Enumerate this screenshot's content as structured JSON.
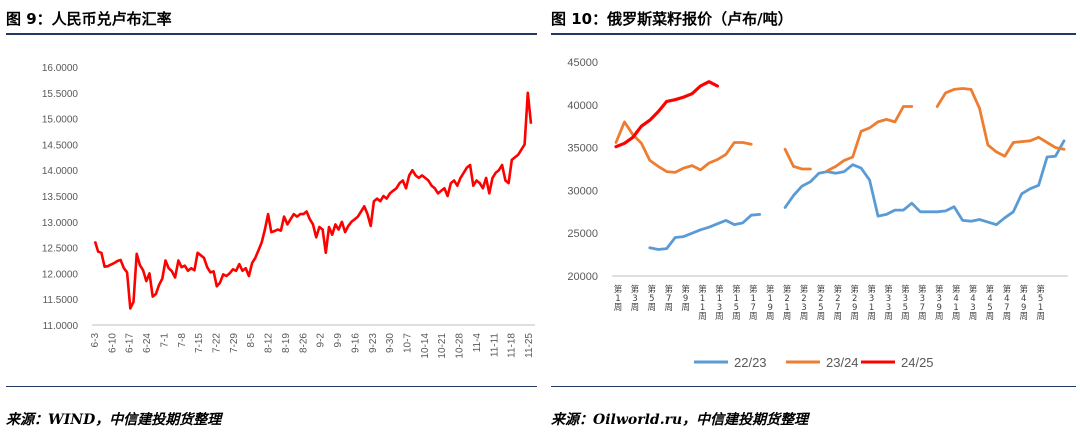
{
  "left": {
    "title": "图 9：人民币兑卢布汇率",
    "source": "来源：WIND，中信建投期货整理"
  },
  "right": {
    "title": "图 10：俄罗斯菜籽报价（卢布/吨）",
    "source": "来源：Oilworld.ru，中信建投期货整理"
  },
  "chart_data": [
    {
      "type": "line",
      "title": "图 9：人民币兑卢布汇率",
      "ylim": [
        11,
        16
      ],
      "yticks": [
        "11.0000",
        "11.5000",
        "12.0000",
        "12.5000",
        "13.0000",
        "13.5000",
        "14.0000",
        "14.5000",
        "15.0000",
        "15.5000",
        "16.0000"
      ],
      "xticks": [
        "6-3",
        "6-10",
        "6-17",
        "6-24",
        "7-1",
        "7-8",
        "7-15",
        "7-22",
        "7-29",
        "8-5",
        "8-12",
        "8-19",
        "8-26",
        "9-2",
        "9-9",
        "9-16",
        "9-23",
        "9-30",
        "10-7",
        "10-14",
        "10-21",
        "10-28",
        "11-4",
        "11-11",
        "11-18",
        "11-25"
      ],
      "color": "#ff0000",
      "series": [
        {
          "values": [
            12.62,
            12.42,
            12.4,
            12.13,
            12.14,
            12.17,
            12.2,
            12.24,
            12.26,
            12.1,
            12.02,
            11.32,
            11.45,
            12.38,
            12.16,
            12.06,
            11.85,
            12.0,
            11.55,
            11.6,
            11.78,
            11.9,
            12.25,
            12.1,
            12.04,
            11.92,
            12.25,
            12.12,
            12.15,
            12.05,
            12.1,
            12.06,
            12.4,
            12.35,
            12.3,
            12.12,
            12.02,
            12.04,
            11.75,
            11.82,
            11.98,
            11.95,
            12.0,
            12.08,
            12.05,
            12.18,
            12.05,
            12.1,
            11.95,
            12.2,
            12.3,
            12.45,
            12.6,
            12.85,
            13.15,
            12.8,
            12.82,
            12.85,
            12.83,
            13.1,
            12.95,
            13.05,
            13.15,
            13.1,
            13.15,
            13.15,
            13.2,
            13.05,
            12.95,
            12.7,
            12.9,
            12.85,
            12.4,
            12.9,
            12.75,
            12.95,
            12.85,
            13.0,
            12.8,
            12.92,
            13.0,
            13.05,
            13.1,
            13.2,
            13.3,
            13.15,
            12.92,
            13.4,
            13.45,
            13.4,
            13.5,
            13.45,
            13.55,
            13.6,
            13.65,
            13.75,
            13.8,
            13.65,
            13.9,
            14.0,
            13.9,
            13.85,
            13.9,
            13.85,
            13.8,
            13.7,
            13.65,
            13.55,
            13.6,
            13.65,
            13.5,
            13.75,
            13.8,
            13.7,
            13.85,
            13.95,
            14.05,
            14.1,
            13.7,
            13.8,
            13.75,
            13.65,
            13.85,
            13.55,
            13.85,
            13.95,
            14.0,
            14.1,
            13.8,
            13.75,
            14.2,
            14.25,
            14.3,
            14.4,
            14.5,
            15.5,
            14.9
          ]
        }
      ]
    },
    {
      "type": "line",
      "title": "图 10：俄罗斯菜籽报价（卢布/吨）",
      "ylim": [
        20000,
        45000
      ],
      "yticks": [
        "20000",
        "25000",
        "30000",
        "35000",
        "40000",
        "45000"
      ],
      "xticks": [
        "第1周",
        "第3周",
        "第5周",
        "第7周",
        "第9周",
        "第11周",
        "第13周",
        "第15周",
        "第17周",
        "第19周",
        "第21周",
        "第23周",
        "第25周",
        "第27周",
        "第29周",
        "第31周",
        "第33周",
        "第35周",
        "第37周",
        "第39周",
        "第41周",
        "第43周",
        "第45周",
        "第47周",
        "第49周",
        "第51周"
      ],
      "series": [
        {
          "name": "22/23",
          "color": "#5b9bd5",
          "values": [
            null,
            null,
            null,
            null,
            23300,
            23100,
            23200,
            24500,
            24600,
            25000,
            25400,
            25700,
            26100,
            26500,
            26000,
            26200,
            27100,
            27200,
            null,
            null,
            28000,
            29400,
            30500,
            31000,
            32000,
            32200,
            32000,
            32200,
            33000,
            32600,
            31200,
            27000,
            27200,
            27700,
            27700,
            28500,
            27500,
            27500,
            27500,
            27600,
            28100,
            26500,
            26400,
            26600,
            26300,
            26000,
            26800,
            27500,
            29600,
            30200,
            30600,
            33900,
            34000,
            35800
          ]
        },
        {
          "name": "23/24",
          "color": "#ed7d31",
          "values": [
            35600,
            38000,
            36500,
            35500,
            33500,
            32800,
            32200,
            32100,
            32600,
            32900,
            32400,
            33200,
            33600,
            34200,
            35600,
            35600,
            35400,
            null,
            null,
            null,
            34800,
            32800,
            32500,
            32500,
            null,
            32300,
            32800,
            33500,
            33900,
            36900,
            37300,
            38000,
            38300,
            38000,
            39800,
            39800,
            null,
            null,
            39800,
            41400,
            41800,
            41900,
            41800,
            39600,
            35300,
            34500,
            34000,
            35600,
            35700,
            35800,
            36200,
            35600,
            35000,
            34800
          ]
        },
        {
          "name": "24/25",
          "color": "#ff0000",
          "values": [
            35100,
            35500,
            36200,
            37500,
            38200,
            39200,
            40400,
            40600,
            40900,
            41300,
            42200,
            42700,
            42200
          ]
        }
      ],
      "legend": "bottom"
    }
  ]
}
